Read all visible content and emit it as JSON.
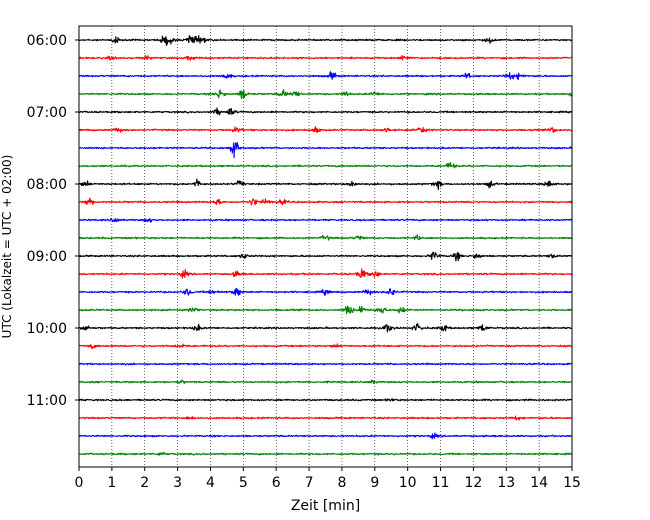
{
  "chart_data": {
    "type": "line",
    "title": "",
    "xlabel": "Zeit  [min]",
    "ylabel": "UTC (Lokalzeit = UTC + 02:00)",
    "xlim": [
      0,
      15
    ],
    "x_ticks": [
      0,
      1,
      2,
      3,
      4,
      5,
      6,
      7,
      8,
      9,
      10,
      11,
      12,
      13,
      14,
      15
    ],
    "y_tick_labels": [
      "06:00",
      "07:00",
      "08:00",
      "09:00",
      "10:00",
      "11:00"
    ],
    "y_tick_rows": [
      0,
      4,
      8,
      12,
      16,
      20
    ],
    "grid": "vertical dotted at each minute",
    "trace_colors": [
      "#000000",
      "#ff0000",
      "#0000ff",
      "#008000"
    ],
    "rows": [
      {
        "start": "06:00",
        "color": "#000000",
        "bursts": [
          {
            "t": 1.1,
            "a": 1.3
          },
          {
            "t": 2.6,
            "a": 1.9
          },
          {
            "t": 2.8,
            "a": 1.4
          },
          {
            "t": 3.4,
            "a": 2.4
          },
          {
            "t": 3.7,
            "a": 1.8
          },
          {
            "t": 12.5,
            "a": 1.1
          }
        ]
      },
      {
        "start": "06:15",
        "color": "#ff0000",
        "bursts": [
          {
            "t": 1.0,
            "a": 0.9
          },
          {
            "t": 2.1,
            "a": 1.1
          },
          {
            "t": 3.4,
            "a": 0.9
          },
          {
            "t": 9.9,
            "a": 1.0
          }
        ]
      },
      {
        "start": "06:30",
        "color": "#0000ff",
        "bursts": [
          {
            "t": 4.5,
            "a": 1.1
          },
          {
            "t": 7.7,
            "a": 1.6
          },
          {
            "t": 11.8,
            "a": 1.0
          },
          {
            "t": 13.1,
            "a": 1.6
          },
          {
            "t": 13.4,
            "a": 1.2
          }
        ]
      },
      {
        "start": "06:45",
        "color": "#008000",
        "bursts": [
          {
            "t": 4.3,
            "a": 2.0
          },
          {
            "t": 5.0,
            "a": 2.2
          },
          {
            "t": 6.2,
            "a": 1.5
          },
          {
            "t": 6.6,
            "a": 1.4
          },
          {
            "t": 8.1,
            "a": 1.0
          },
          {
            "t": 9.0,
            "a": 1.0
          },
          {
            "t": 15.0,
            "a": 1.3
          }
        ]
      },
      {
        "start": "07:00",
        "color": "#000000",
        "bursts": [
          {
            "t": 4.2,
            "a": 1.3
          },
          {
            "t": 4.6,
            "a": 1.6
          }
        ]
      },
      {
        "start": "07:15",
        "color": "#ff0000",
        "bursts": [
          {
            "t": 1.2,
            "a": 0.9
          },
          {
            "t": 4.8,
            "a": 1.1
          },
          {
            "t": 7.2,
            "a": 1.3
          },
          {
            "t": 9.4,
            "a": 1.0
          },
          {
            "t": 10.4,
            "a": 1.6
          },
          {
            "t": 14.4,
            "a": 1.1
          }
        ]
      },
      {
        "start": "07:30",
        "color": "#0000ff",
        "bursts": [
          {
            "t": 4.75,
            "a": 3.6
          }
        ]
      },
      {
        "start": "07:45",
        "color": "#008000",
        "bursts": [
          {
            "t": 11.3,
            "a": 1.5
          }
        ]
      },
      {
        "start": "08:00",
        "color": "#000000",
        "bursts": [
          {
            "t": 0.2,
            "a": 1.2
          },
          {
            "t": 3.6,
            "a": 1.8
          },
          {
            "t": 4.9,
            "a": 1.2
          },
          {
            "t": 8.3,
            "a": 1.4
          },
          {
            "t": 10.9,
            "a": 1.7
          },
          {
            "t": 12.5,
            "a": 1.3
          },
          {
            "t": 14.3,
            "a": 1.5
          }
        ]
      },
      {
        "start": "08:15",
        "color": "#ff0000",
        "bursts": [
          {
            "t": 0.3,
            "a": 1.9
          },
          {
            "t": 4.2,
            "a": 1.1
          },
          {
            "t": 5.3,
            "a": 1.6
          },
          {
            "t": 5.7,
            "a": 1.3
          },
          {
            "t": 6.2,
            "a": 1.0
          }
        ]
      },
      {
        "start": "08:30",
        "color": "#0000ff",
        "bursts": [
          {
            "t": 1.1,
            "a": 0.9
          },
          {
            "t": 2.1,
            "a": 1.0
          }
        ]
      },
      {
        "start": "08:45",
        "color": "#008000",
        "bursts": [
          {
            "t": 7.5,
            "a": 1.0
          },
          {
            "t": 8.5,
            "a": 1.0
          },
          {
            "t": 10.3,
            "a": 0.9
          }
        ]
      },
      {
        "start": "09:00",
        "color": "#000000",
        "bursts": [
          {
            "t": 5.0,
            "a": 1.0
          },
          {
            "t": 10.8,
            "a": 2.0
          },
          {
            "t": 11.5,
            "a": 1.5
          },
          {
            "t": 12.1,
            "a": 1.2
          },
          {
            "t": 14.4,
            "a": 1.0
          }
        ]
      },
      {
        "start": "09:15",
        "color": "#ff0000",
        "bursts": [
          {
            "t": 3.2,
            "a": 1.3
          },
          {
            "t": 4.8,
            "a": 1.1
          },
          {
            "t": 8.6,
            "a": 2.1
          },
          {
            "t": 9.0,
            "a": 1.4
          }
        ]
      },
      {
        "start": "09:30",
        "color": "#0000ff",
        "bursts": [
          {
            "t": 3.3,
            "a": 1.4
          },
          {
            "t": 4.1,
            "a": 1.3
          },
          {
            "t": 4.8,
            "a": 2.0
          },
          {
            "t": 7.5,
            "a": 1.0
          },
          {
            "t": 8.8,
            "a": 1.2
          },
          {
            "t": 9.5,
            "a": 1.7
          }
        ]
      },
      {
        "start": "09:45",
        "color": "#008000",
        "bursts": [
          {
            "t": 3.5,
            "a": 1.3
          },
          {
            "t": 8.2,
            "a": 2.1
          },
          {
            "t": 8.6,
            "a": 1.9
          },
          {
            "t": 9.2,
            "a": 1.8
          },
          {
            "t": 9.8,
            "a": 1.4
          }
        ]
      },
      {
        "start": "10:00",
        "color": "#000000",
        "bursts": [
          {
            "t": 0.2,
            "a": 1.6
          },
          {
            "t": 3.6,
            "a": 1.2
          },
          {
            "t": 9.4,
            "a": 1.8
          },
          {
            "t": 10.3,
            "a": 1.6
          },
          {
            "t": 11.1,
            "a": 1.4
          },
          {
            "t": 12.3,
            "a": 1.5
          }
        ]
      },
      {
        "start": "10:15",
        "color": "#ff0000",
        "bursts": [
          {
            "t": 0.4,
            "a": 0.8
          },
          {
            "t": 3.1,
            "a": 0.7
          },
          {
            "t": 7.8,
            "a": 0.7
          }
        ]
      },
      {
        "start": "10:30",
        "color": "#0000ff",
        "bursts": []
      },
      {
        "start": "10:45",
        "color": "#008000",
        "bursts": [
          {
            "t": 3.1,
            "a": 0.7
          },
          {
            "t": 8.9,
            "a": 0.6
          }
        ]
      },
      {
        "start": "11:00",
        "color": "#000000",
        "bursts": [
          {
            "t": 9.5,
            "a": 0.6
          }
        ]
      },
      {
        "start": "11:15",
        "color": "#ff0000",
        "bursts": [
          {
            "t": 3.4,
            "a": 0.6
          },
          {
            "t": 13.3,
            "a": 0.8
          }
        ]
      },
      {
        "start": "11:30",
        "color": "#0000ff",
        "bursts": [
          {
            "t": 10.8,
            "a": 0.8
          }
        ]
      },
      {
        "start": "11:45",
        "color": "#008000",
        "bursts": [
          {
            "t": 2.5,
            "a": 0.6
          }
        ]
      }
    ]
  }
}
